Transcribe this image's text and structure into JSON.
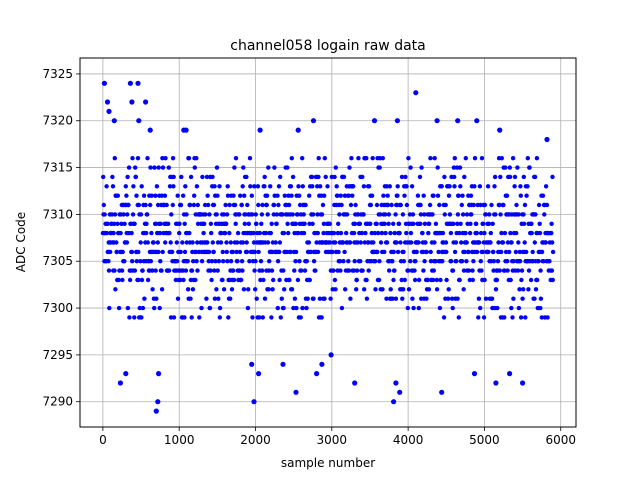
{
  "chart_data": {
    "type": "scatter",
    "title": "channel058 logain raw data",
    "xlabel": "sample number",
    "ylabel": "ADC Code",
    "xlim": [
      -300,
      6200
    ],
    "ylim": [
      7287.3,
      7326.7
    ],
    "xticks": [
      0,
      1000,
      2000,
      3000,
      4000,
      5000,
      6000
    ],
    "yticks": [
      7290,
      7295,
      7300,
      7305,
      7310,
      7315,
      7320,
      7325
    ],
    "grid": true,
    "marker_color": "#0000ff",
    "series": [
      {
        "sample_count": 5900,
        "x_range": [
          0,
          5900
        ],
        "dense_band": [
          7299,
          7316
        ],
        "outliers": [
          [
            20,
            7324
          ],
          [
            60,
            7322
          ],
          [
            80,
            7321
          ],
          [
            150,
            7320
          ],
          [
            230,
            7292
          ],
          [
            300,
            7293
          ],
          [
            360,
            7324
          ],
          [
            380,
            7322
          ],
          [
            460,
            7324
          ],
          [
            470,
            7320
          ],
          [
            560,
            7322
          ],
          [
            620,
            7319
          ],
          [
            700,
            7289
          ],
          [
            720,
            7290
          ],
          [
            730,
            7293
          ],
          [
            1060,
            7319
          ],
          [
            1090,
            7319
          ],
          [
            1950,
            7294
          ],
          [
            1980,
            7290
          ],
          [
            2040,
            7293
          ],
          [
            2060,
            7319
          ],
          [
            2360,
            7294
          ],
          [
            2530,
            7291
          ],
          [
            2560,
            7319
          ],
          [
            2760,
            7320
          ],
          [
            2800,
            7293
          ],
          [
            2870,
            7294
          ],
          [
            2990,
            7295
          ],
          [
            3300,
            7292
          ],
          [
            3560,
            7320
          ],
          [
            3810,
            7290
          ],
          [
            3840,
            7292
          ],
          [
            3860,
            7320
          ],
          [
            3890,
            7291
          ],
          [
            4100,
            7323
          ],
          [
            4380,
            7320
          ],
          [
            4440,
            7291
          ],
          [
            4650,
            7320
          ],
          [
            4870,
            7293
          ],
          [
            4900,
            7320
          ],
          [
            5150,
            7292
          ],
          [
            5200,
            7319
          ],
          [
            5330,
            7293
          ],
          [
            5500,
            7292
          ],
          [
            5820,
            7318
          ]
        ]
      }
    ]
  }
}
